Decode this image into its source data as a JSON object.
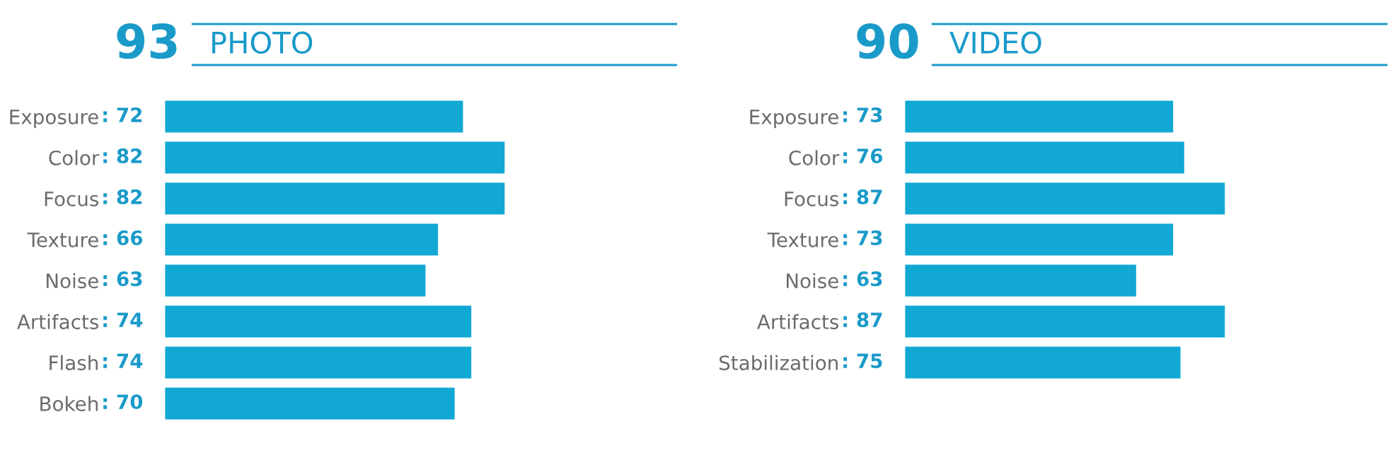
{
  "chart_data": [
    {
      "type": "bar",
      "orientation": "horizontal",
      "title": "PHOTO",
      "annotations": [
        "93"
      ],
      "categories": [
        "Exposure",
        "Color",
        "Focus",
        "Texture",
        "Noise",
        "Artifacts",
        "Flash",
        "Bokeh"
      ],
      "values": [
        72,
        82,
        82,
        66,
        63,
        74,
        74,
        70
      ],
      "value_labels": [
        ": 72",
        ": 82",
        ": 82",
        ": 66",
        ": 63",
        ": 74",
        ": 74",
        ": 70"
      ],
      "color": "#12a8d4",
      "tick_labels": "y"
    },
    {
      "type": "bar",
      "orientation": "horizontal",
      "title": "VIDEO",
      "annotations": [
        "90"
      ],
      "categories": [
        "Exposure",
        "Color",
        "Focus",
        "Texture",
        "Noise",
        "Artifacts",
        "Stabilization"
      ],
      "values": [
        73,
        76,
        87,
        73,
        63,
        87,
        75
      ],
      "value_labels": [
        ": 73",
        ": 76",
        ": 87",
        ": 73",
        ": 63",
        ": 87",
        ": 75"
      ],
      "color": "#12a8d4",
      "tick_labels": "y"
    }
  ]
}
